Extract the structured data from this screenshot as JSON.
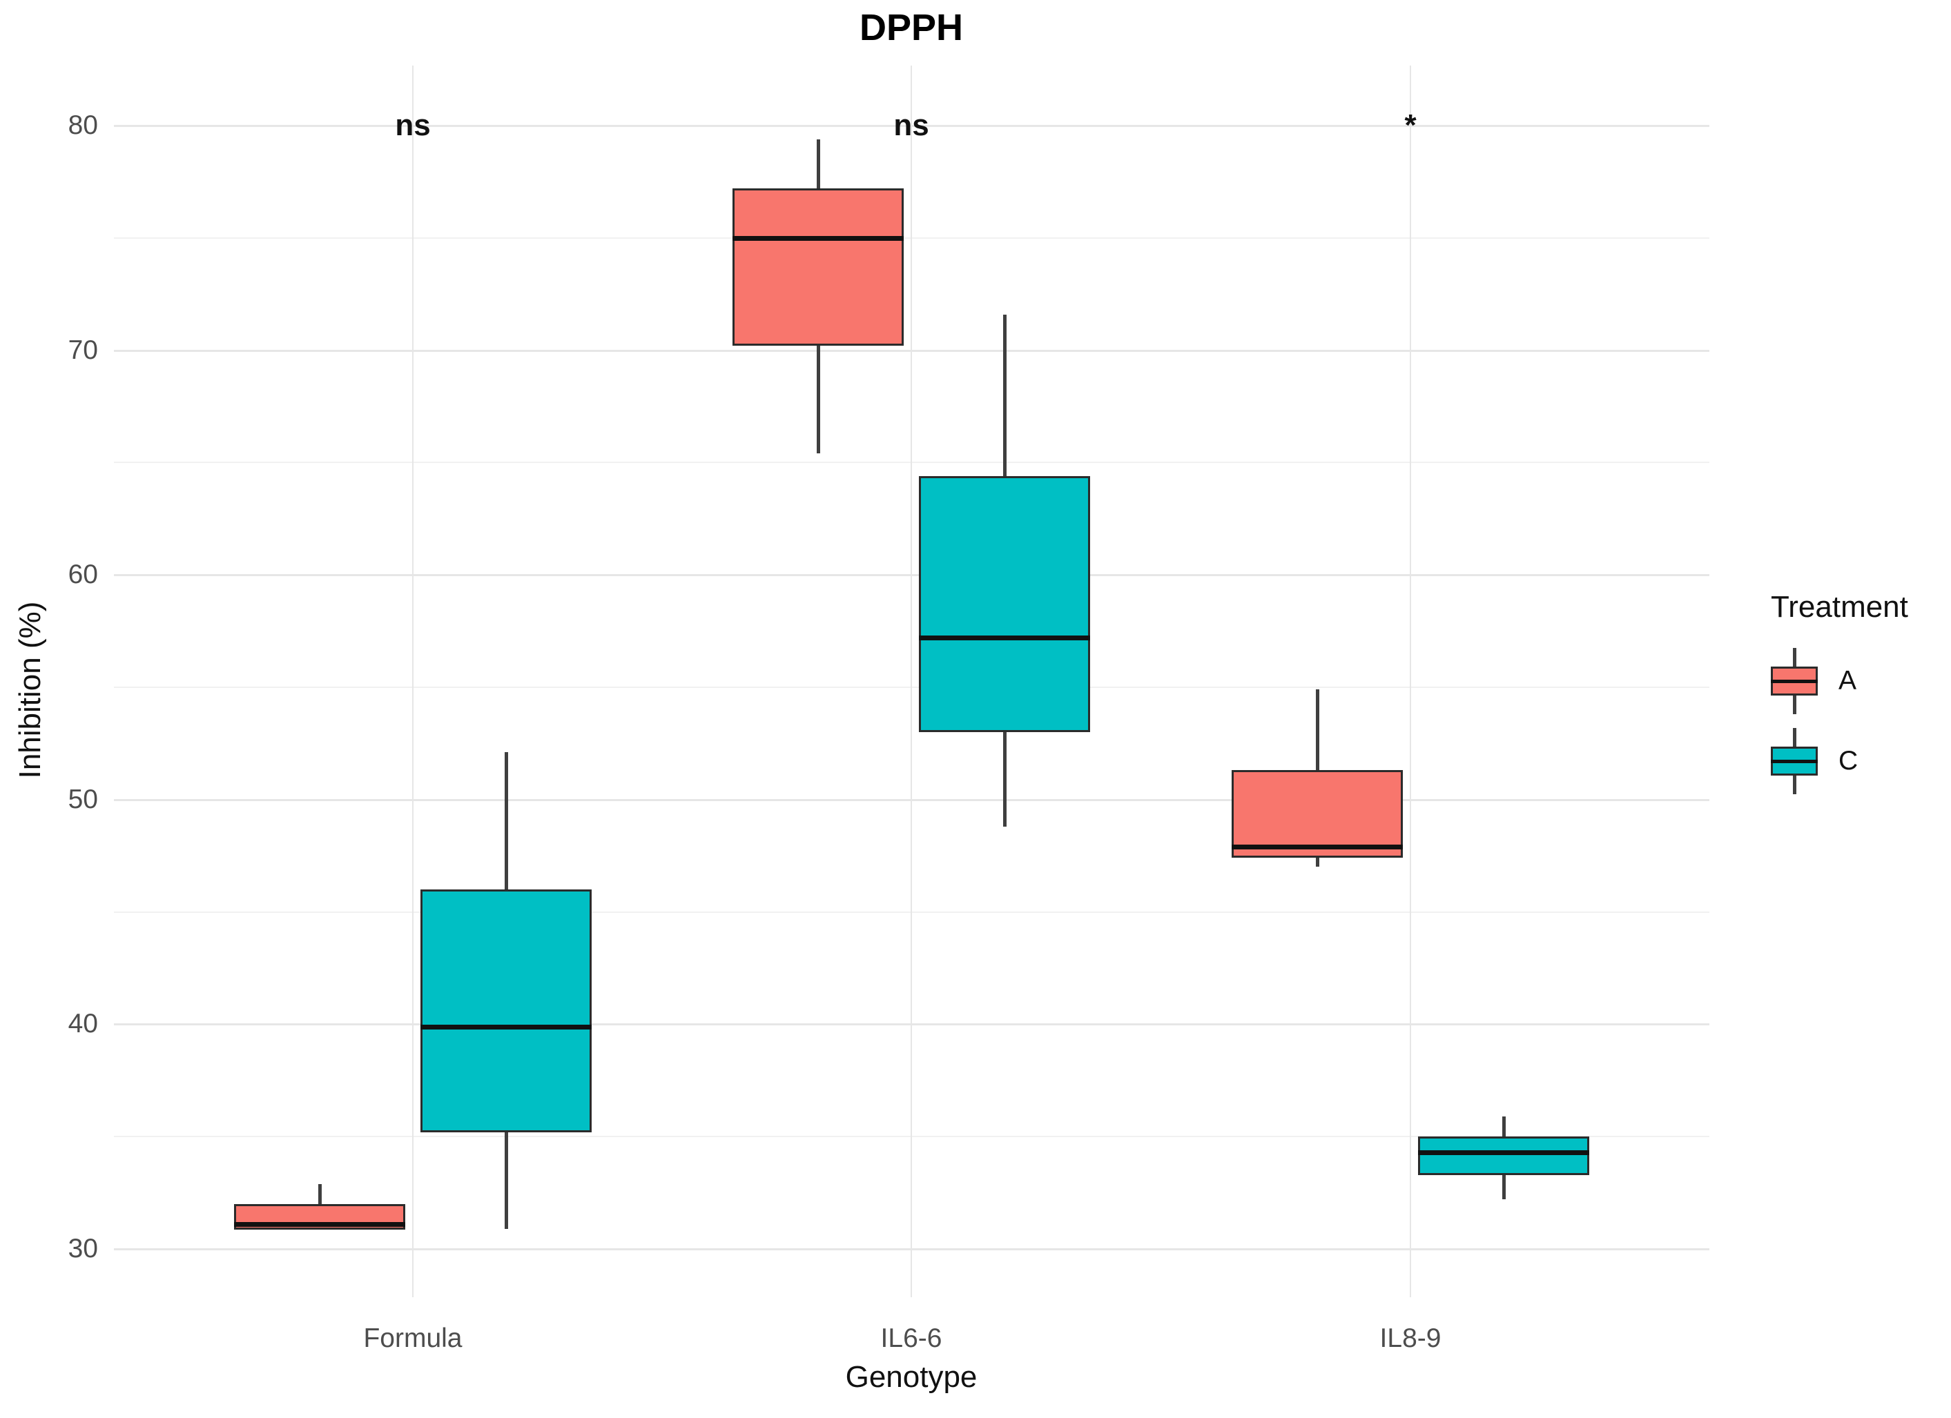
{
  "chart_data": {
    "type": "boxplot",
    "title": "DPPH",
    "xlabel": "Genotype",
    "ylabel": "Inhibition (%)",
    "categories": [
      "Formula",
      "IL6-6",
      "IL8-9"
    ],
    "y_ticks": [
      30,
      40,
      50,
      60,
      70,
      80
    ],
    "y_minor_ticks": [
      35,
      45,
      55,
      65,
      75
    ],
    "ylim": [
      27.9,
      82.7
    ],
    "grid": true,
    "legend": {
      "title": "Treatment",
      "position": "right",
      "entries": [
        {
          "label": "A",
          "color": "#F8766D"
        },
        {
          "label": "C",
          "color": "#00BFC4"
        }
      ]
    },
    "annotations": [
      {
        "category": "Formula",
        "text": "ns",
        "y": 80
      },
      {
        "category": "IL6-6",
        "text": "ns",
        "y": 80
      },
      {
        "category": "IL8-9",
        "text": "*",
        "y": 80
      }
    ],
    "series": [
      {
        "name": "A",
        "color": "#F8766D",
        "boxes": [
          {
            "category": "Formula",
            "whisker_low": 30.85,
            "q1": 30.85,
            "median": 31.1,
            "q3": 32.0,
            "whisker_high": 32.9
          },
          {
            "category": "IL6-6",
            "whisker_low": 65.4,
            "q1": 70.2,
            "median": 75.0,
            "q3": 77.2,
            "whisker_high": 79.4
          },
          {
            "category": "IL8-9",
            "whisker_low": 47.0,
            "q1": 47.4,
            "median": 47.9,
            "q3": 51.3,
            "whisker_high": 54.9
          }
        ]
      },
      {
        "name": "C",
        "color": "#00BFC4",
        "boxes": [
          {
            "category": "Formula",
            "whisker_low": 30.9,
            "q1": 35.2,
            "median": 39.9,
            "q3": 46.0,
            "whisker_high": 52.1
          },
          {
            "category": "IL6-6",
            "whisker_low": 48.8,
            "q1": 53.0,
            "median": 57.2,
            "q3": 64.4,
            "whisker_high": 71.6
          },
          {
            "category": "IL8-9",
            "whisker_low": 32.2,
            "q1": 33.3,
            "median": 34.3,
            "q3": 35.0,
            "whisker_high": 35.9
          }
        ]
      }
    ],
    "style": {
      "background": "#ffffff",
      "grid_major": "#e6e6e6",
      "grid_minor": "#f1f1f1",
      "box_border": "#2b2b2b",
      "median_color": "#111111",
      "whisker_color": "#3f3f3f",
      "tick_label_color": "#4d4d4d",
      "text_color": "#111111"
    }
  }
}
